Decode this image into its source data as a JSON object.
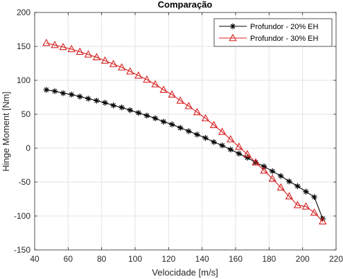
{
  "chart_data": {
    "type": "line",
    "title": "Comparação",
    "xlabel": "Velocidade [m/s]",
    "ylabel": "Hinge Moment [Nm]",
    "xlim": [
      40,
      220
    ],
    "ylim": [
      -150,
      200
    ],
    "xticks": [
      40,
      60,
      80,
      100,
      120,
      140,
      160,
      180,
      200,
      220
    ],
    "yticks": [
      -150,
      -100,
      -50,
      0,
      50,
      100,
      150,
      200
    ],
    "grid": true,
    "legend_position": "top-right",
    "series": [
      {
        "name": "Profundor - 20% EH",
        "color": "#000000",
        "marker": "asterisk",
        "x": [
          47,
          52,
          57,
          62,
          67,
          72,
          77,
          82,
          87,
          92,
          97,
          102,
          107,
          112,
          117,
          122,
          127,
          132,
          137,
          142,
          147,
          152,
          157,
          162,
          167,
          172,
          177,
          182,
          187,
          192,
          197,
          202,
          207,
          212
        ],
        "y": [
          86,
          84,
          81,
          79,
          76,
          73,
          70,
          67,
          63,
          60,
          56,
          52,
          48,
          44,
          39,
          35,
          30,
          25,
          20,
          15,
          9,
          4,
          -2,
          -8,
          -14,
          -21,
          -27,
          -34,
          -41,
          -49,
          -56,
          -64,
          -72,
          -104
        ]
      },
      {
        "name": "Profundor - 30% EH",
        "color": "#d81f1f",
        "marker": "triangle",
        "x": [
          47,
          52,
          57,
          62,
          67,
          72,
          77,
          82,
          87,
          92,
          97,
          102,
          107,
          112,
          117,
          122,
          127,
          132,
          137,
          142,
          147,
          152,
          157,
          162,
          167,
          172,
          177,
          182,
          187,
          192,
          197,
          202,
          207,
          212
        ],
        "y": [
          155,
          152,
          149,
          146,
          142,
          138,
          134,
          129,
          124,
          119,
          113,
          107,
          101,
          94,
          86,
          79,
          70,
          62,
          53,
          44,
          34,
          24,
          13,
          2,
          -9,
          -21,
          -33,
          -45,
          -58,
          -71,
          -84,
          -86,
          -95,
          -108
        ]
      }
    ]
  }
}
